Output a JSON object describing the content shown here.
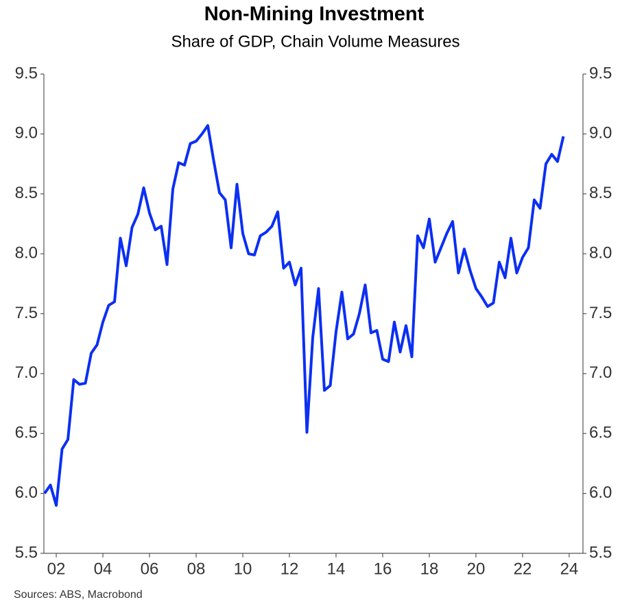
{
  "chart_data": {
    "type": "line",
    "title": "Non-Mining Investment",
    "subtitle": "Share of GDP, Chain Volume Measures",
    "source": "Sources: ABS, Macrobond",
    "color": "#0b2ff4",
    "x": [
      2001.5,
      2001.75,
      2002,
      2002.25,
      2002.5,
      2002.75,
      2003,
      2003.25,
      2003.5,
      2003.75,
      2004,
      2004.25,
      2004.5,
      2004.75,
      2005,
      2005.25,
      2005.5,
      2005.75,
      2006,
      2006.25,
      2006.5,
      2006.75,
      2007,
      2007.25,
      2007.5,
      2007.75,
      2008,
      2008.25,
      2008.5,
      2008.75,
      2009,
      2009.25,
      2009.5,
      2009.75,
      2010,
      2010.25,
      2010.5,
      2010.75,
      2011,
      2011.25,
      2011.5,
      2011.75,
      2012,
      2012.25,
      2012.5,
      2012.75,
      2013,
      2013.25,
      2013.5,
      2013.75,
      2014,
      2014.25,
      2014.5,
      2014.75,
      2015,
      2015.25,
      2015.5,
      2015.75,
      2016,
      2016.25,
      2016.5,
      2016.75,
      2017,
      2017.25,
      2017.5,
      2017.75,
      2018,
      2018.25,
      2018.5,
      2018.75,
      2019,
      2019.25,
      2019.5,
      2019.75,
      2020,
      2020.25,
      2020.5,
      2020.75,
      2021,
      2021.25,
      2021.5,
      2021.75,
      2022,
      2022.25,
      2022.5,
      2022.75,
      2023,
      2023.25,
      2023.5,
      2023.75
    ],
    "values": [
      6.0,
      6.07,
      5.9,
      6.37,
      6.45,
      6.95,
      6.91,
      6.92,
      7.17,
      7.24,
      7.43,
      7.57,
      7.6,
      8.13,
      7.9,
      8.22,
      8.33,
      8.55,
      8.34,
      8.2,
      8.23,
      7.91,
      8.54,
      8.76,
      8.74,
      8.92,
      8.94,
      9.0,
      9.07,
      8.78,
      8.51,
      8.45,
      8.05,
      8.58,
      8.17,
      8.0,
      7.99,
      8.15,
      8.18,
      8.23,
      8.35,
      7.88,
      7.93,
      7.74,
      7.88,
      6.51,
      7.3,
      7.71,
      6.86,
      6.9,
      7.35,
      7.68,
      7.29,
      7.33,
      7.5,
      7.74,
      7.34,
      7.36,
      7.12,
      7.1,
      7.43,
      7.18,
      7.4,
      7.14,
      8.15,
      8.05,
      8.29,
      7.93,
      8.05,
      8.17,
      8.27,
      7.84,
      8.04,
      7.86,
      7.71,
      7.64,
      7.56,
      7.59,
      7.93,
      7.8,
      8.13,
      7.84,
      7.97,
      8.05,
      8.45,
      8.38,
      8.75,
      8.83,
      8.77,
      8.98
    ],
    "xlim": [
      2001.47,
      2024.59
    ],
    "xticks": [
      {
        "value": 2002,
        "label": "02"
      },
      {
        "value": 2004,
        "label": "04"
      },
      {
        "value": 2006,
        "label": "06"
      },
      {
        "value": 2008,
        "label": "08"
      },
      {
        "value": 2010,
        "label": "10"
      },
      {
        "value": 2012,
        "label": "12"
      },
      {
        "value": 2014,
        "label": "14"
      },
      {
        "value": 2016,
        "label": "16"
      },
      {
        "value": 2018,
        "label": "18"
      },
      {
        "value": 2020,
        "label": "20"
      },
      {
        "value": 2022,
        "label": "22"
      },
      {
        "value": 2024,
        "label": "24"
      }
    ],
    "ylim": [
      5.5,
      9.5
    ],
    "yticks": [
      5.5,
      {
        "value": 6,
        "label": "6.0"
      },
      6.5,
      {
        "value": 7,
        "label": "7.0"
      },
      7.5,
      {
        "value": 8,
        "label": "8.0"
      },
      8.5,
      {
        "value": 9,
        "label": "9.0"
      },
      9.5
    ],
    "y2lim": [
      5.5,
      9.5
    ],
    "y2ticks": [
      5.5,
      {
        "value": 6,
        "label": "6.0"
      },
      6.5,
      {
        "value": 7,
        "label": "7.0"
      },
      7.5,
      {
        "value": 8,
        "label": "8.0"
      },
      8.5,
      {
        "value": 9,
        "label": "9.0"
      },
      9.5
    ],
    "grid": false
  }
}
